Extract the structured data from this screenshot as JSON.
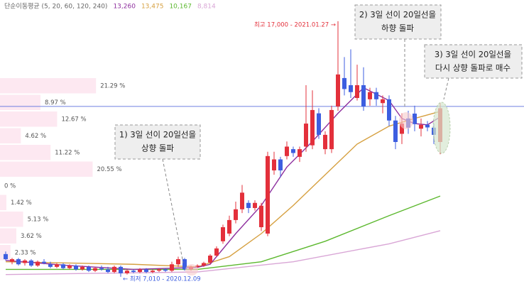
{
  "chart_data": {
    "type": "candlestick",
    "legend_title": "단순이동평균 (5, 20, 60, 120, 240)",
    "ylim": [
      6730,
      17830
    ],
    "up_color": "#e3303b",
    "down_color": "#3d5ee0",
    "candles": [
      [
        7900,
        8000,
        7650,
        7700
      ],
      [
        7600,
        7750,
        7500,
        7700
      ],
      [
        7700,
        7750,
        7450,
        7500
      ],
      [
        7550,
        7700,
        7450,
        7650
      ],
      [
        7650,
        7700,
        7400,
        7450
      ],
      [
        7450,
        7650,
        7400,
        7600
      ],
      [
        7600,
        7700,
        7500,
        7550
      ],
      [
        7500,
        7600,
        7350,
        7400
      ],
      [
        7400,
        7550,
        7350,
        7500
      ],
      [
        7500,
        7550,
        7300,
        7350
      ],
      [
        7350,
        7500,
        7300,
        7450
      ],
      [
        7450,
        7500,
        7250,
        7300
      ],
      [
        7300,
        7450,
        7250,
        7400
      ],
      [
        7400,
        7450,
        7200,
        7250
      ],
      [
        7250,
        7400,
        7200,
        7350
      ],
      [
        7350,
        7450,
        7250,
        7300
      ],
      [
        7300,
        7400,
        7150,
        7200
      ],
      [
        7200,
        7450,
        7150,
        7400
      ],
      [
        7400,
        7450,
        7010,
        7150
      ],
      [
        7150,
        7300,
        7100,
        7250
      ],
      [
        7250,
        7300,
        7150,
        7200
      ],
      [
        7200,
        7350,
        7150,
        7300
      ],
      [
        7300,
        7350,
        7150,
        7200
      ],
      [
        7200,
        7300,
        7150,
        7250
      ],
      [
        7250,
        7350,
        7200,
        7300
      ],
      [
        7300,
        7350,
        7200,
        7250
      ],
      [
        7250,
        7600,
        7200,
        7500
      ],
      [
        7500,
        7800,
        7400,
        7700
      ],
      [
        7700,
        7750,
        7250,
        7300
      ],
      [
        7300,
        7450,
        7250,
        7400
      ],
      [
        7400,
        7500,
        7350,
        7450
      ],
      [
        7450,
        7600,
        7400,
        7550
      ],
      [
        7570,
        7900,
        7500,
        7840
      ],
      [
        7840,
        8200,
        7800,
        8120
      ],
      [
        8400,
        9050,
        8300,
        8950
      ],
      [
        8700,
        9400,
        8600,
        9230
      ],
      [
        9230,
        9950,
        9100,
        9650
      ],
      [
        9650,
        10600,
        9500,
        10300
      ],
      [
        9900,
        10000,
        9500,
        9700
      ],
      [
        9700,
        10000,
        9600,
        9900
      ],
      [
        8950,
        9900,
        8800,
        9790
      ],
      [
        8700,
        11900,
        8600,
        11730
      ],
      [
        11170,
        11900,
        11000,
        11600
      ],
      [
        11600,
        11700,
        10900,
        11170
      ],
      [
        11730,
        12300,
        11600,
        12100
      ],
      [
        12000,
        12100,
        11700,
        11850
      ],
      [
        11700,
        12100,
        11500,
        12000
      ],
      [
        12100,
        14500,
        11900,
        13000
      ],
      [
        12150,
        14300,
        12000,
        13530
      ],
      [
        13400,
        13600,
        12400,
        12560
      ],
      [
        12000,
        12700,
        11800,
        12560
      ],
      [
        12000,
        13700,
        11850,
        13530
      ],
      [
        13670,
        17000,
        13500,
        14920
      ],
      [
        14780,
        15600,
        14100,
        14350
      ],
      [
        14500,
        15900,
        14000,
        14230
      ],
      [
        14000,
        15300,
        13900,
        14500
      ],
      [
        14500,
        15200,
        13500,
        13670
      ],
      [
        13950,
        14400,
        13700,
        14230
      ],
      [
        14230,
        14400,
        13700,
        13950
      ],
      [
        13800,
        14100,
        13400,
        13950
      ],
      [
        13950,
        14100,
        12900,
        13120
      ],
      [
        13120,
        13300,
        12000,
        12280
      ],
      [
        12600,
        13400,
        12200,
        13000
      ],
      [
        13200,
        13500,
        12600,
        12840
      ],
      [
        13390,
        13700,
        12700,
        12980
      ],
      [
        12800,
        13200,
        12500,
        12950
      ],
      [
        12950,
        13100,
        12700,
        12850
      ],
      [
        12840,
        13000,
        12200,
        12560
      ],
      [
        12280,
        13800,
        11800,
        13600
      ]
    ],
    "moving_averages": [
      {
        "color": "#8e2f9e",
        "value_label": "13,260",
        "x": [
          0,
          10,
          20,
          30,
          32,
          36,
          40,
          44,
          48,
          52,
          56,
          60,
          62,
          64,
          66,
          68
        ],
        "values": [
          7650,
          7450,
          7300,
          7380,
          7500,
          8700,
          9800,
          11300,
          12300,
          13400,
          14400,
          13900,
          13200,
          13000,
          12950,
          13260
        ]
      },
      {
        "color": "#d6a040",
        "value_label": "13,475",
        "x": [
          0,
          20,
          30,
          35,
          40,
          45,
          50,
          55,
          60,
          64,
          68
        ],
        "values": [
          7600,
          7500,
          7400,
          7800,
          8700,
          9800,
          11000,
          12200,
          12900,
          13200,
          13475
        ]
      },
      {
        "color": "#5cb82e",
        "value_label": "10,167",
        "x": [
          0,
          30,
          40,
          50,
          60,
          68
        ],
        "values": [
          7300,
          7300,
          7600,
          8400,
          9400,
          10167
        ]
      },
      {
        "color": "#d9a6d6",
        "value_label": "8,814",
        "x": [
          0,
          30,
          45,
          60,
          68
        ],
        "values": [
          7100,
          7200,
          7600,
          8300,
          8814
        ]
      }
    ],
    "price_line": {
      "value": 13670,
      "color": "#6f7fe0"
    },
    "volume_profile": {
      "color": "#fde8f1",
      "values": [
        21.29,
        8.97,
        12.67,
        4.62,
        11.22,
        20.55,
        0,
        1.42,
        5.13,
        3.62,
        2.33
      ],
      "value_labels": [
        "21.29 %",
        "8.97 %",
        "12.67 %",
        "4.62 %",
        "11.22 %",
        "20.55 %",
        "0 %",
        "1.42 %",
        "5.13 %",
        "3.62 %",
        "2.33 %"
      ]
    },
    "high_label": "최고 17,000 - 2021.01.27 →",
    "low_label": "← 최저 7,010 - 2020.12.09",
    "annotations": [
      {
        "lines": [
          "1) 3일 선이 20일선을",
          "상향 돌파"
        ]
      },
      {
        "lines": [
          "2) 3일 선이 20일선을",
          "하향 돌파"
        ]
      },
      {
        "lines": [
          "3) 3일 선이 20일선을",
          "다시 상향 돌파로 매수"
        ]
      }
    ]
  }
}
